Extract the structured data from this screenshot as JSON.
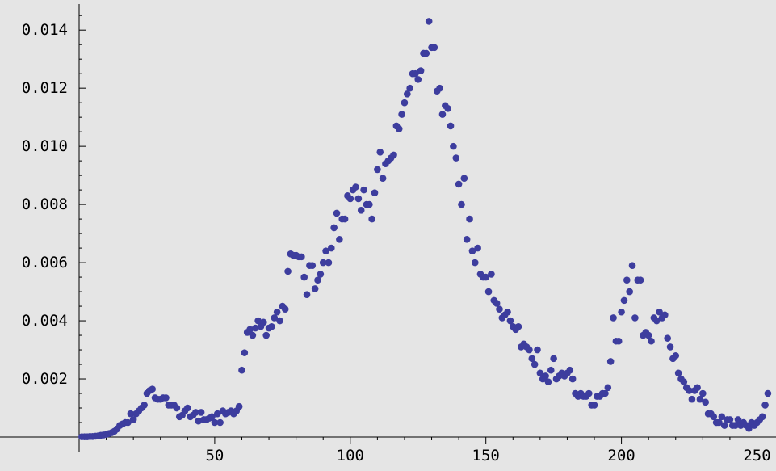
{
  "chart_data": {
    "type": "scatter",
    "title": "",
    "xlabel": "",
    "ylabel": "",
    "xlim": [
      0,
      257
    ],
    "ylim": [
      0,
      0.0147
    ],
    "x_origin": 0,
    "y_origin": 0,
    "grid": false,
    "marker_color": "#3d3d9e",
    "x_ticks": [
      {
        "value": 50,
        "label": "50"
      },
      {
        "value": 100,
        "label": "100"
      },
      {
        "value": 150,
        "label": "150"
      },
      {
        "value": 200,
        "label": "200"
      },
      {
        "value": 250,
        "label": "250"
      }
    ],
    "y_ticks": [
      {
        "value": 0.002,
        "label": "0.002"
      },
      {
        "value": 0.004,
        "label": "0.004"
      },
      {
        "value": 0.006,
        "label": "0.006"
      },
      {
        "value": 0.008,
        "label": "0.008"
      },
      {
        "value": 0.01,
        "label": "0.010"
      },
      {
        "value": 0.012,
        "label": "0.012"
      },
      {
        "value": 0.014,
        "label": "0.014"
      }
    ],
    "x_minor_step": 10,
    "y_minor_step": 0.0005,
    "points": [
      [
        1,
        1e-05
      ],
      [
        2,
        1e-05
      ],
      [
        3,
        1e-05
      ],
      [
        4,
        2e-05
      ],
      [
        5,
        2e-05
      ],
      [
        6,
        3e-05
      ],
      [
        7,
        4e-05
      ],
      [
        8,
        6e-05
      ],
      [
        9,
        7e-05
      ],
      [
        10,
        9e-05
      ],
      [
        11,
        0.00012
      ],
      [
        12,
        0.00015
      ],
      [
        13,
        0.0002
      ],
      [
        14,
        0.00028
      ],
      [
        15,
        0.0004
      ],
      [
        16,
        0.00045
      ],
      [
        17,
        0.0005
      ],
      [
        18,
        0.0005
      ],
      [
        19,
        0.0008
      ],
      [
        20,
        0.0006
      ],
      [
        21,
        0.0008
      ],
      [
        22,
        0.0009
      ],
      [
        23,
        0.001
      ],
      [
        24,
        0.0011
      ],
      [
        25,
        0.0015
      ],
      [
        26,
        0.0016
      ],
      [
        27,
        0.00165
      ],
      [
        28,
        0.00135
      ],
      [
        29,
        0.0013
      ],
      [
        30,
        0.0013
      ],
      [
        31,
        0.00135
      ],
      [
        32,
        0.00135
      ],
      [
        33,
        0.0011
      ],
      [
        34,
        0.0011
      ],
      [
        35,
        0.0011
      ],
      [
        36,
        0.001
      ],
      [
        37,
        0.0007
      ],
      [
        38,
        0.00075
      ],
      [
        39,
        0.0009
      ],
      [
        40,
        0.001
      ],
      [
        41,
        0.0007
      ],
      [
        42,
        0.00075
      ],
      [
        43,
        0.00085
      ],
      [
        44,
        0.00055
      ],
      [
        45,
        0.00085
      ],
      [
        46,
        0.0006
      ],
      [
        47,
        0.0006
      ],
      [
        48,
        0.00065
      ],
      [
        49,
        0.0007
      ],
      [
        50,
        0.0005
      ],
      [
        51,
        0.0008
      ],
      [
        52,
        0.0005
      ],
      [
        53,
        0.0009
      ],
      [
        54,
        0.0008
      ],
      [
        55,
        0.00085
      ],
      [
        56,
        0.0009
      ],
      [
        57,
        0.0008
      ],
      [
        58,
        0.0009
      ],
      [
        59,
        0.00105
      ],
      [
        60,
        0.0023
      ],
      [
        61,
        0.0029
      ],
      [
        62,
        0.0036
      ],
      [
        63,
        0.0037
      ],
      [
        64,
        0.0035
      ],
      [
        65,
        0.00375
      ],
      [
        66,
        0.004
      ],
      [
        67,
        0.0038
      ],
      [
        68,
        0.00395
      ],
      [
        69,
        0.0035
      ],
      [
        70,
        0.00375
      ],
      [
        71,
        0.0038
      ],
      [
        72,
        0.0041
      ],
      [
        73,
        0.0043
      ],
      [
        74,
        0.004
      ],
      [
        75,
        0.0045
      ],
      [
        76,
        0.0044
      ],
      [
        77,
        0.0057
      ],
      [
        78,
        0.0063
      ],
      [
        79,
        0.00625
      ],
      [
        80,
        0.00625
      ],
      [
        81,
        0.0062
      ],
      [
        82,
        0.0062
      ],
      [
        83,
        0.0055
      ],
      [
        84,
        0.0049
      ],
      [
        85,
        0.0059
      ],
      [
        86,
        0.0059
      ],
      [
        87,
        0.0051
      ],
      [
        88,
        0.0054
      ],
      [
        89,
        0.0056
      ],
      [
        90,
        0.006
      ],
      [
        91,
        0.0064
      ],
      [
        92,
        0.006
      ],
      [
        93,
        0.0065
      ],
      [
        94,
        0.0072
      ],
      [
        95,
        0.0077
      ],
      [
        96,
        0.0068
      ],
      [
        97,
        0.0075
      ],
      [
        98,
        0.0075
      ],
      [
        99,
        0.0083
      ],
      [
        100,
        0.0082
      ],
      [
        101,
        0.0085
      ],
      [
        102,
        0.0086
      ],
      [
        103,
        0.0082
      ],
      [
        104,
        0.0078
      ],
      [
        105,
        0.0085
      ],
      [
        106,
        0.008
      ],
      [
        107,
        0.008
      ],
      [
        108,
        0.0075
      ],
      [
        109,
        0.0084
      ],
      [
        110,
        0.0092
      ],
      [
        111,
        0.0098
      ],
      [
        112,
        0.0089
      ],
      [
        113,
        0.0094
      ],
      [
        114,
        0.0095
      ],
      [
        115,
        0.0096
      ],
      [
        116,
        0.0097
      ],
      [
        117,
        0.0107
      ],
      [
        118,
        0.0106
      ],
      [
        119,
        0.0111
      ],
      [
        120,
        0.0115
      ],
      [
        121,
        0.0118
      ],
      [
        122,
        0.012
      ],
      [
        123,
        0.0125
      ],
      [
        124,
        0.0125
      ],
      [
        125,
        0.0123
      ],
      [
        126,
        0.0126
      ],
      [
        127,
        0.0132
      ],
      [
        128,
        0.0132
      ],
      [
        129,
        0.0143
      ],
      [
        130,
        0.0134
      ],
      [
        131,
        0.0134
      ],
      [
        132,
        0.0119
      ],
      [
        133,
        0.012
      ],
      [
        134,
        0.0111
      ],
      [
        135,
        0.0114
      ],
      [
        136,
        0.0113
      ],
      [
        137,
        0.0107
      ],
      [
        138,
        0.01
      ],
      [
        139,
        0.0096
      ],
      [
        140,
        0.0087
      ],
      [
        141,
        0.008
      ],
      [
        142,
        0.0089
      ],
      [
        143,
        0.0068
      ],
      [
        144,
        0.0075
      ],
      [
        145,
        0.0064
      ],
      [
        146,
        0.006
      ],
      [
        147,
        0.0065
      ],
      [
        148,
        0.0056
      ],
      [
        149,
        0.0055
      ],
      [
        150,
        0.0055
      ],
      [
        151,
        0.005
      ],
      [
        152,
        0.0056
      ],
      [
        153,
        0.0047
      ],
      [
        154,
        0.0046
      ],
      [
        155,
        0.0044
      ],
      [
        156,
        0.0041
      ],
      [
        157,
        0.0042
      ],
      [
        158,
        0.0043
      ],
      [
        159,
        0.004
      ],
      [
        160,
        0.0038
      ],
      [
        161,
        0.0037
      ],
      [
        162,
        0.0038
      ],
      [
        163,
        0.0031
      ],
      [
        164,
        0.0032
      ],
      [
        165,
        0.0031
      ],
      [
        166,
        0.003
      ],
      [
        167,
        0.0027
      ],
      [
        168,
        0.0025
      ],
      [
        169,
        0.003
      ],
      [
        170,
        0.0022
      ],
      [
        171,
        0.002
      ],
      [
        172,
        0.0021
      ],
      [
        173,
        0.0019
      ],
      [
        174,
        0.0023
      ],
      [
        175,
        0.0027
      ],
      [
        176,
        0.002
      ],
      [
        177,
        0.0021
      ],
      [
        178,
        0.0022
      ],
      [
        179,
        0.0021
      ],
      [
        180,
        0.0022
      ],
      [
        181,
        0.0023
      ],
      [
        182,
        0.002
      ],
      [
        183,
        0.0015
      ],
      [
        184,
        0.0014
      ],
      [
        185,
        0.0015
      ],
      [
        186,
        0.0014
      ],
      [
        187,
        0.0014
      ],
      [
        188,
        0.0015
      ],
      [
        189,
        0.0011
      ],
      [
        190,
        0.0011
      ],
      [
        191,
        0.0014
      ],
      [
        192,
        0.0014
      ],
      [
        193,
        0.0015
      ],
      [
        194,
        0.0015
      ],
      [
        195,
        0.0017
      ],
      [
        196,
        0.0026
      ],
      [
        197,
        0.0041
      ],
      [
        198,
        0.0033
      ],
      [
        199,
        0.0033
      ],
      [
        200,
        0.0043
      ],
      [
        201,
        0.0047
      ],
      [
        202,
        0.0054
      ],
      [
        203,
        0.005
      ],
      [
        204,
        0.0059
      ],
      [
        205,
        0.0041
      ],
      [
        206,
        0.0054
      ],
      [
        207,
        0.0054
      ],
      [
        208,
        0.0035
      ],
      [
        209,
        0.0036
      ],
      [
        210,
        0.0035
      ],
      [
        211,
        0.0033
      ],
      [
        212,
        0.0041
      ],
      [
        213,
        0.004
      ],
      [
        214,
        0.0043
      ],
      [
        215,
        0.0041
      ],
      [
        216,
        0.0042
      ],
      [
        217,
        0.0034
      ],
      [
        218,
        0.0031
      ],
      [
        219,
        0.0027
      ],
      [
        220,
        0.0028
      ],
      [
        221,
        0.0022
      ],
      [
        222,
        0.002
      ],
      [
        223,
        0.0019
      ],
      [
        224,
        0.0017
      ],
      [
        225,
        0.0016
      ],
      [
        226,
        0.0013
      ],
      [
        227,
        0.0016
      ],
      [
        228,
        0.0017
      ],
      [
        229,
        0.0013
      ],
      [
        230,
        0.0015
      ],
      [
        231,
        0.0012
      ],
      [
        232,
        0.0008
      ],
      [
        233,
        0.0008
      ],
      [
        234,
        0.0007
      ],
      [
        235,
        0.0005
      ],
      [
        236,
        0.0005
      ],
      [
        237,
        0.0007
      ],
      [
        238,
        0.0004
      ],
      [
        239,
        0.0006
      ],
      [
        240,
        0.0006
      ],
      [
        241,
        0.0004
      ],
      [
        242,
        0.0004
      ],
      [
        243,
        0.0006
      ],
      [
        244,
        0.0004
      ],
      [
        245,
        0.0005
      ],
      [
        246,
        0.0004
      ],
      [
        247,
        0.0003
      ],
      [
        248,
        0.0005
      ],
      [
        249,
        0.0004
      ],
      [
        250,
        0.0005
      ],
      [
        251,
        0.0006
      ],
      [
        252,
        0.0007
      ],
      [
        253,
        0.0011
      ],
      [
        254,
        0.0015
      ]
    ]
  }
}
